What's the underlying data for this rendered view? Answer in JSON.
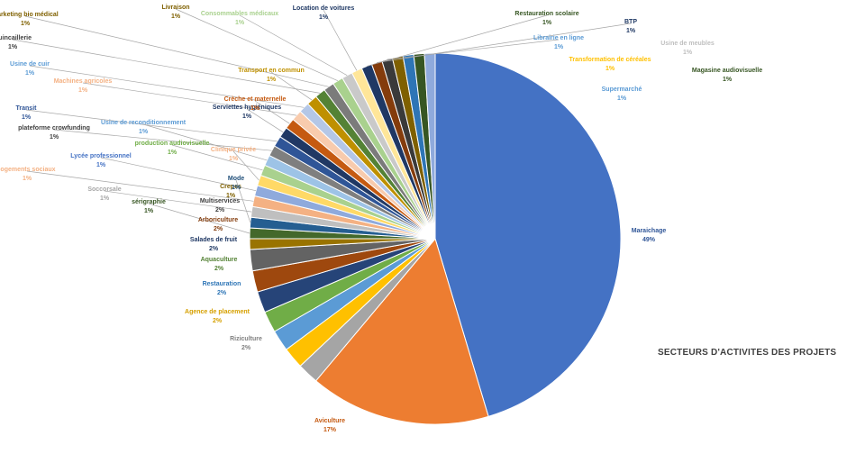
{
  "chart_data": {
    "type": "pie",
    "title": "SECTEURS D'ACTIVITES DES PROJETS",
    "slices": [
      {
        "label": "Maraichage",
        "value": 49,
        "pct": "49%",
        "color": "#4472C4",
        "label_color": "#2F5597"
      },
      {
        "label": "Aviculture",
        "value": 17,
        "pct": "17%",
        "color": "#ED7D31",
        "label_color": "#C55A11"
      },
      {
        "label": "Riziculture",
        "value": 2,
        "pct": "2%",
        "color": "#A5A5A5",
        "label_color": "#808080"
      },
      {
        "label": "Agence de placement",
        "value": 2,
        "pct": "2%",
        "color": "#FFC000",
        "label_color": "#D6A000"
      },
      {
        "label": "Restauration",
        "value": 2,
        "pct": "2%",
        "color": "#5B9BD5",
        "label_color": "#2E75B6"
      },
      {
        "label": "Aquaculture",
        "value": 2,
        "pct": "2%",
        "color": "#70AD47",
        "label_color": "#548235"
      },
      {
        "label": "Salades de fruit",
        "value": 2,
        "pct": "2%",
        "color": "#264478",
        "label_color": "#1F3864"
      },
      {
        "label": "Arboriculture",
        "value": 2,
        "pct": "2%",
        "color": "#9E480E",
        "label_color": "#843C0C"
      },
      {
        "label": "Multiservices",
        "value": 2,
        "pct": "2%",
        "color": "#636363",
        "label_color": "#404040"
      },
      {
        "label": "Crepes",
        "value": 1,
        "pct": "1%",
        "color": "#997300",
        "label_color": "#7F6000"
      },
      {
        "label": "sérigraphie",
        "value": 1,
        "pct": "1%",
        "color": "#43682B",
        "label_color": "#375623"
      },
      {
        "label": "Mode",
        "value": 1,
        "pct": "1%",
        "color": "#255E91",
        "label_color": "#1F4E79"
      },
      {
        "label": "Soccorsale",
        "value": 1,
        "pct": "1%",
        "color": "#BFBFBF",
        "label_color": "#A6A6A6"
      },
      {
        "label": "logements sociaux",
        "value": 1,
        "pct": "1%",
        "color": "#F4B183",
        "label_color": "#F4B183"
      },
      {
        "label": "Lycée professionnel",
        "value": 1,
        "pct": "1%",
        "color": "#8FAADC",
        "label_color": "#4472C4"
      },
      {
        "label": "Clinique privée",
        "value": 1,
        "pct": "1%",
        "color": "#FFD966",
        "label_color": "#F4B183"
      },
      {
        "label": "production audiovisuelle",
        "value": 1,
        "pct": "1%",
        "color": "#A9D18E",
        "label_color": "#70AD47"
      },
      {
        "label": "Usine de reconditionnement",
        "value": 1,
        "pct": "1%",
        "color": "#9DC3E6",
        "label_color": "#5B9BD5"
      },
      {
        "label": "plateforme crowfunding",
        "value": 1,
        "pct": "1%",
        "color": "#7F7F7F",
        "label_color": "#404040"
      },
      {
        "label": "Transit",
        "value": 1,
        "pct": "1%",
        "color": "#2F5597",
        "label_color": "#2F5597"
      },
      {
        "label": "Serviettes hygiéniques",
        "value": 1,
        "pct": "1%",
        "color": "#203864",
        "label_color": "#1F3864"
      },
      {
        "label": "Crèche et maternelle",
        "value": 1,
        "pct": "1%",
        "color": "#C55A11",
        "label_color": "#C55A11"
      },
      {
        "label": "Machines agricoles",
        "value": 1,
        "pct": "1%",
        "color": "#F8CBAD",
        "label_color": "#F4B183"
      },
      {
        "label": "Usine de cuir",
        "value": 1,
        "pct": "1%",
        "color": "#B4C7E7",
        "label_color": "#5B9BD5"
      },
      {
        "label": "Transport en commun",
        "value": 1,
        "pct": "1%",
        "color": "#BF9000",
        "label_color": "#BF9000"
      },
      {
        "label": "Quincaillerie",
        "value": 1,
        "pct": "1%",
        "color": "#548235",
        "label_color": "#404040"
      },
      {
        "label": "Marketing bio médical",
        "value": 1,
        "pct": "1%",
        "color": "#7B7B7B",
        "label_color": "#7F6000"
      },
      {
        "label": "Livraison",
        "value": 1,
        "pct": "1%",
        "color": "#A9D18E",
        "label_color": "#7F6000"
      },
      {
        "label": "Consommables médicaux",
        "value": 1,
        "pct": "1%",
        "color": "#C9C9C9",
        "label_color": "#A9D18E"
      },
      {
        "label": "Location de voitures",
        "value": 1,
        "pct": "1%",
        "color": "#FFE699",
        "label_color": "#1F3864"
      },
      {
        "label": "Restauration scolaire",
        "value": 1,
        "pct": "1%",
        "color": "#1F3864",
        "label_color": "#375623"
      },
      {
        "label": "BTP",
        "value": 1,
        "pct": "1%",
        "color": "#843C0C",
        "label_color": "#1F3864"
      },
      {
        "label": "Librairie en ligne",
        "value": 1,
        "pct": "1%",
        "color": "#3A3A3A",
        "label_color": "#5B9BD5"
      },
      {
        "label": "Usine de meubles",
        "value": 1,
        "pct": "1%",
        "color": "#7F6000",
        "label_color": "#BFBFBF"
      },
      {
        "label": "Transformation de céréales",
        "value": 1,
        "pct": "1%",
        "color": "#2E75B6",
        "label_color": "#FFC000"
      },
      {
        "label": "Magasine audiovisuelle",
        "value": 1,
        "pct": "1%",
        "color": "#375623",
        "label_color": "#375623"
      },
      {
        "label": "Supermarché",
        "value": 1,
        "pct": "1%",
        "color": "#8FAADC",
        "label_color": "#5B9BD5"
      }
    ]
  }
}
